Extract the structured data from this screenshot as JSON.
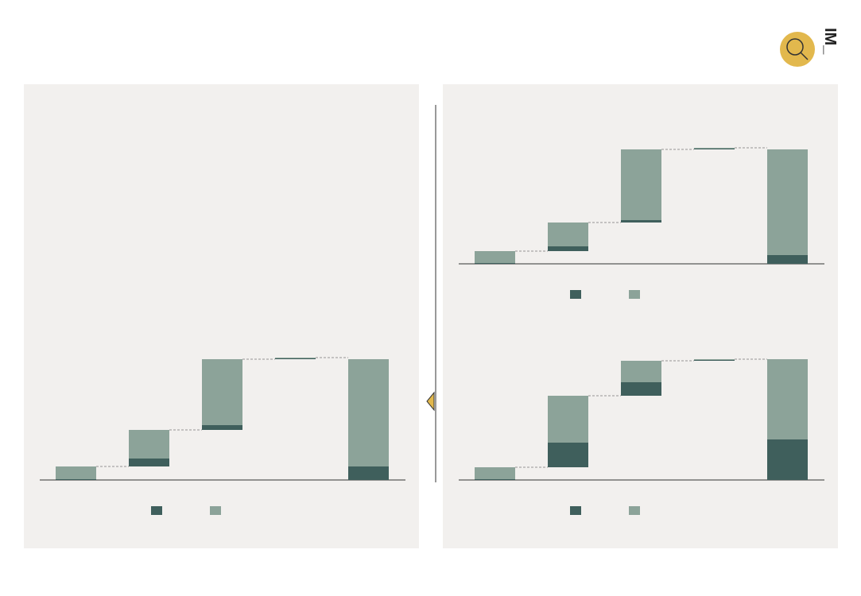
{
  "logo": "IM_",
  "charts": [
    {
      "chart_data": {
        "type": "waterfall",
        "ylim": [
          0,
          160
        ],
        "series": [
          {
            "color": "#3f5f5c",
            "values": [
              1,
              10,
              6,
              1,
              17
            ]
          },
          {
            "color": "#8ca399",
            "values": [
              16,
              36,
              83,
              1,
              135
            ]
          }
        ]
      }
    },
    {
      "chart_data": {
        "type": "waterfall",
        "ylim": [
          0,
          160
        ],
        "series": [
          {
            "color": "#3f5f5c",
            "values": [
              1,
              6,
              3,
              1,
              11
            ]
          },
          {
            "color": "#8ca399",
            "values": [
              15,
              30,
              89,
              1,
              133
            ]
          }
        ]
      }
    },
    {
      "chart_data": {
        "type": "waterfall",
        "ylim": [
          0,
          160
        ],
        "series": [
          {
            "color": "#3f5f5c",
            "values": [
              1,
              31,
              17,
              1,
              51
            ]
          },
          {
            "color": "#8ca399",
            "values": [
              15,
              59,
              27,
              1,
              101
            ]
          }
        ]
      }
    }
  ]
}
